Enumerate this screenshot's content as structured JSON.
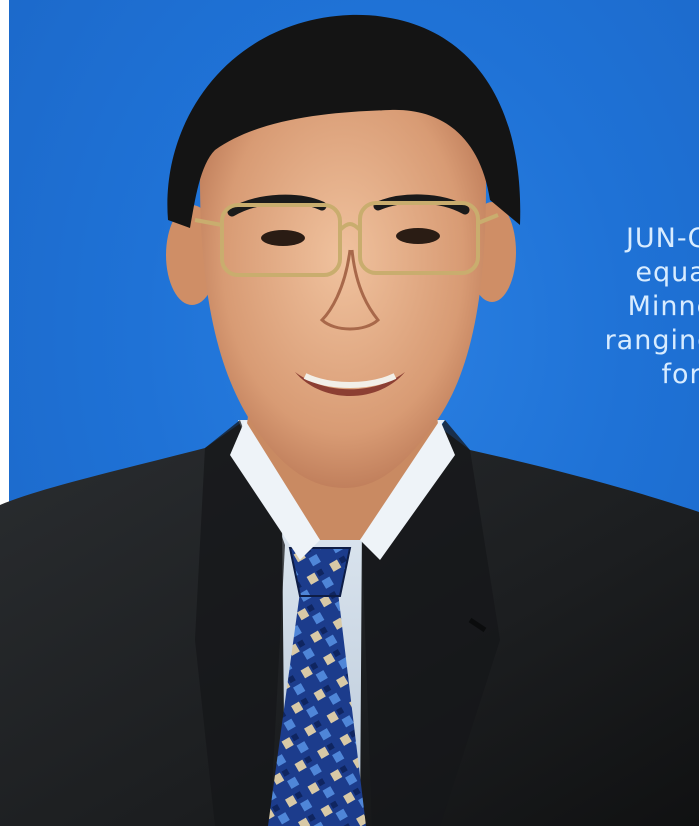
{
  "caption": {
    "lines": [
      "JUN-CHEN",
      "equation",
      "Minnesot",
      "ranging fr",
      "form"
    ]
  }
}
